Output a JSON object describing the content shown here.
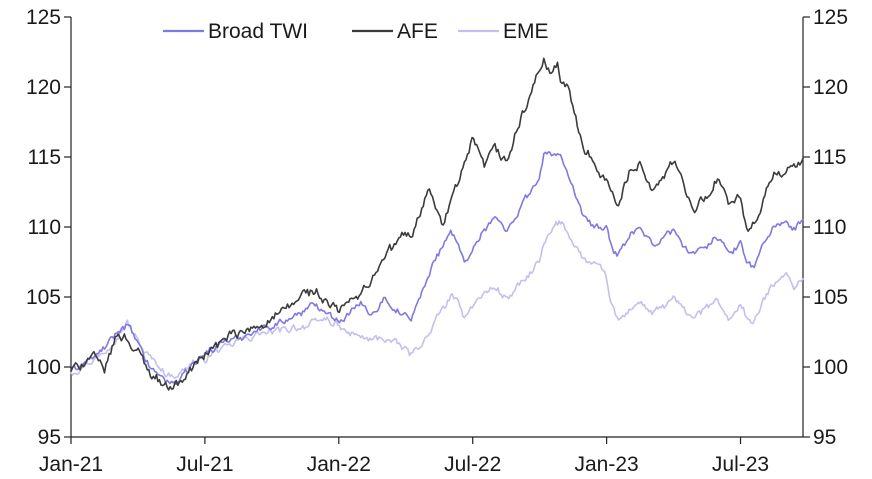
{
  "chart_data": {
    "type": "line",
    "title": "",
    "xlabel": "",
    "ylabel": "",
    "ylim": [
      95,
      125
    ],
    "yticks": [
      95,
      100,
      105,
      110,
      115,
      120,
      125
    ],
    "y2ticks": [
      95,
      100,
      105,
      110,
      115,
      120,
      125
    ],
    "x_range_months": [
      0,
      32.8
    ],
    "xticks": [
      {
        "label": "Jan-21",
        "month": 0
      },
      {
        "label": "Jul-21",
        "month": 6
      },
      {
        "label": "Jan-22",
        "month": 12
      },
      {
        "label": "Jul-22",
        "month": 18
      },
      {
        "label": "Jan-23",
        "month": 24
      },
      {
        "label": "Jul-23",
        "month": 30
      }
    ],
    "grid": false,
    "legend": {
      "placement": "top-center"
    },
    "series": [
      {
        "name": "EME",
        "color": "#c3c0ee",
        "x": [
          0,
          0.5,
          1,
          1.5,
          2,
          2.5,
          3,
          3.5,
          4,
          4.5,
          5,
          5.5,
          6,
          6.5,
          7,
          7.5,
          8,
          8.5,
          9,
          9.5,
          10,
          10.5,
          11,
          11.5,
          12,
          12.5,
          13,
          13.5,
          14,
          14.5,
          15,
          15.2,
          15.6,
          16,
          16.3,
          16.7,
          17,
          17.3,
          17.6,
          18,
          18.5,
          19,
          19.5,
          20,
          20.5,
          21,
          21.2,
          21.5,
          21.8,
          22,
          22.3,
          22.6,
          23,
          23.5,
          24,
          24.2,
          24.5,
          25,
          25.5,
          26,
          26.5,
          27,
          27.5,
          28,
          28.5,
          29,
          29.5,
          30,
          30.3,
          30.6,
          31,
          31.3,
          31.6,
          32,
          32.4,
          32.8
        ],
        "values": [
          99.6,
          100.1,
          100.5,
          101.1,
          102.1,
          103.2,
          101.8,
          100.8,
          99.9,
          99.3,
          99.6,
          100.4,
          100.6,
          101.2,
          101.4,
          101.9,
          102.1,
          102.4,
          102.5,
          102.6,
          102.8,
          103.0,
          103.2,
          103.4,
          102.8,
          102.3,
          102.2,
          101.9,
          102.1,
          101.6,
          101.3,
          100.9,
          101.5,
          102.2,
          103.3,
          104.2,
          105.0,
          104.6,
          103.6,
          104.5,
          105.3,
          105.7,
          104.9,
          105.6,
          106.5,
          107.5,
          108.8,
          109.7,
          110.2,
          110.3,
          109.5,
          108.7,
          107.6,
          107.3,
          106.4,
          104.5,
          103.3,
          104.0,
          104.7,
          103.8,
          104.2,
          104.9,
          103.9,
          103.6,
          104.3,
          104.7,
          103.4,
          104.6,
          103.5,
          103.0,
          104.6,
          105.6,
          106.3,
          106.7,
          105.8,
          106.3
        ]
      },
      {
        "name": "Broad TWI",
        "color": "#8079e2",
        "x": [
          0,
          0.5,
          1,
          1.5,
          2,
          2.5,
          3,
          3.5,
          4,
          4.5,
          5,
          5.5,
          6,
          6.5,
          7,
          7.5,
          8,
          8.5,
          9,
          9.5,
          10,
          10.5,
          11,
          11.5,
          12,
          12.5,
          13,
          13.5,
          14,
          14.5,
          15,
          15.2,
          15.6,
          16,
          16.3,
          16.7,
          17,
          17.3,
          17.6,
          18,
          18.5,
          19,
          19.5,
          20,
          20.5,
          21,
          21.2,
          21.5,
          21.8,
          22,
          22.3,
          22.6,
          23,
          23.5,
          24,
          24.2,
          24.5,
          25,
          25.5,
          26,
          26.5,
          27,
          27.5,
          28,
          28.5,
          29,
          29.5,
          30,
          30.3,
          30.6,
          31,
          31.3,
          31.6,
          32,
          32.4,
          32.8
        ],
        "values": [
          99.7,
          100.2,
          100.6,
          101.3,
          102.4,
          103.0,
          101.6,
          100.1,
          99.3,
          98.9,
          99.2,
          100.3,
          100.9,
          101.5,
          101.9,
          102.0,
          102.4,
          102.7,
          103.0,
          103.2,
          103.7,
          104.1,
          104.4,
          104.0,
          103.4,
          103.9,
          104.5,
          103.9,
          104.9,
          104.3,
          103.6,
          103.3,
          104.9,
          106.3,
          107.8,
          108.8,
          109.8,
          108.8,
          107.6,
          108.4,
          109.8,
          110.7,
          109.6,
          111.1,
          112.4,
          113.3,
          115.3,
          115.2,
          115.3,
          114.9,
          113.5,
          112.0,
          110.5,
          110.0,
          109.8,
          108.5,
          108.0,
          109.3,
          109.9,
          108.7,
          109.3,
          109.8,
          108.6,
          108.1,
          108.8,
          109.3,
          108.0,
          108.9,
          107.6,
          107.2,
          108.6,
          109.6,
          110.2,
          110.5,
          109.7,
          110.5
        ]
      },
      {
        "name": "AFE",
        "color": "#3b3b3b",
        "x": [
          0,
          0.5,
          1,
          1.5,
          2,
          2.5,
          3,
          3.5,
          4,
          4.5,
          5,
          5.5,
          6,
          6.5,
          7,
          7.5,
          8,
          8.5,
          9,
          9.5,
          10,
          10.5,
          11,
          11.5,
          12,
          12.5,
          13,
          13.5,
          14,
          14.5,
          15,
          15.2,
          15.6,
          16,
          16.3,
          16.7,
          17,
          17.3,
          17.6,
          18,
          18.5,
          19,
          19.5,
          20,
          20.5,
          21,
          21.2,
          21.5,
          21.8,
          22,
          22.3,
          22.6,
          23,
          23.5,
          24,
          24.2,
          24.5,
          25,
          25.5,
          26,
          26.5,
          27,
          27.5,
          28,
          28.5,
          29,
          29.5,
          30,
          30.3,
          30.6,
          31,
          31.3,
          31.6,
          32,
          32.4,
          32.8
        ],
        "values": [
          99.7,
          100.3,
          100.8,
          99.8,
          102.2,
          102.1,
          101.1,
          99.7,
          98.9,
          98.6,
          99.0,
          100.1,
          101.0,
          101.6,
          102.1,
          102.3,
          102.6,
          103.0,
          103.5,
          103.9,
          104.6,
          105.3,
          105.3,
          104.4,
          104.0,
          104.6,
          105.4,
          106.1,
          107.7,
          108.8,
          109.5,
          109.2,
          111.0,
          112.8,
          111.5,
          109.9,
          112.0,
          112.9,
          114.0,
          116.1,
          114.3,
          115.5,
          114.5,
          117.0,
          119.1,
          121.3,
          121.9,
          120.6,
          121.6,
          120.2,
          119.8,
          117.8,
          115.6,
          114.5,
          113.5,
          112.4,
          111.6,
          113.7,
          114.8,
          112.8,
          113.3,
          114.8,
          112.7,
          111.2,
          112.4,
          113.6,
          111.4,
          112.2,
          109.2,
          110.0,
          111.8,
          113.3,
          113.9,
          114.1,
          114.1,
          114.9
        ]
      }
    ]
  },
  "legend_items": [
    {
      "name": "Broad TWI",
      "color": "#8079e2"
    },
    {
      "name": "AFE",
      "color": "#3b3b3b"
    },
    {
      "name": "EME",
      "color": "#c3c0ee"
    }
  ]
}
